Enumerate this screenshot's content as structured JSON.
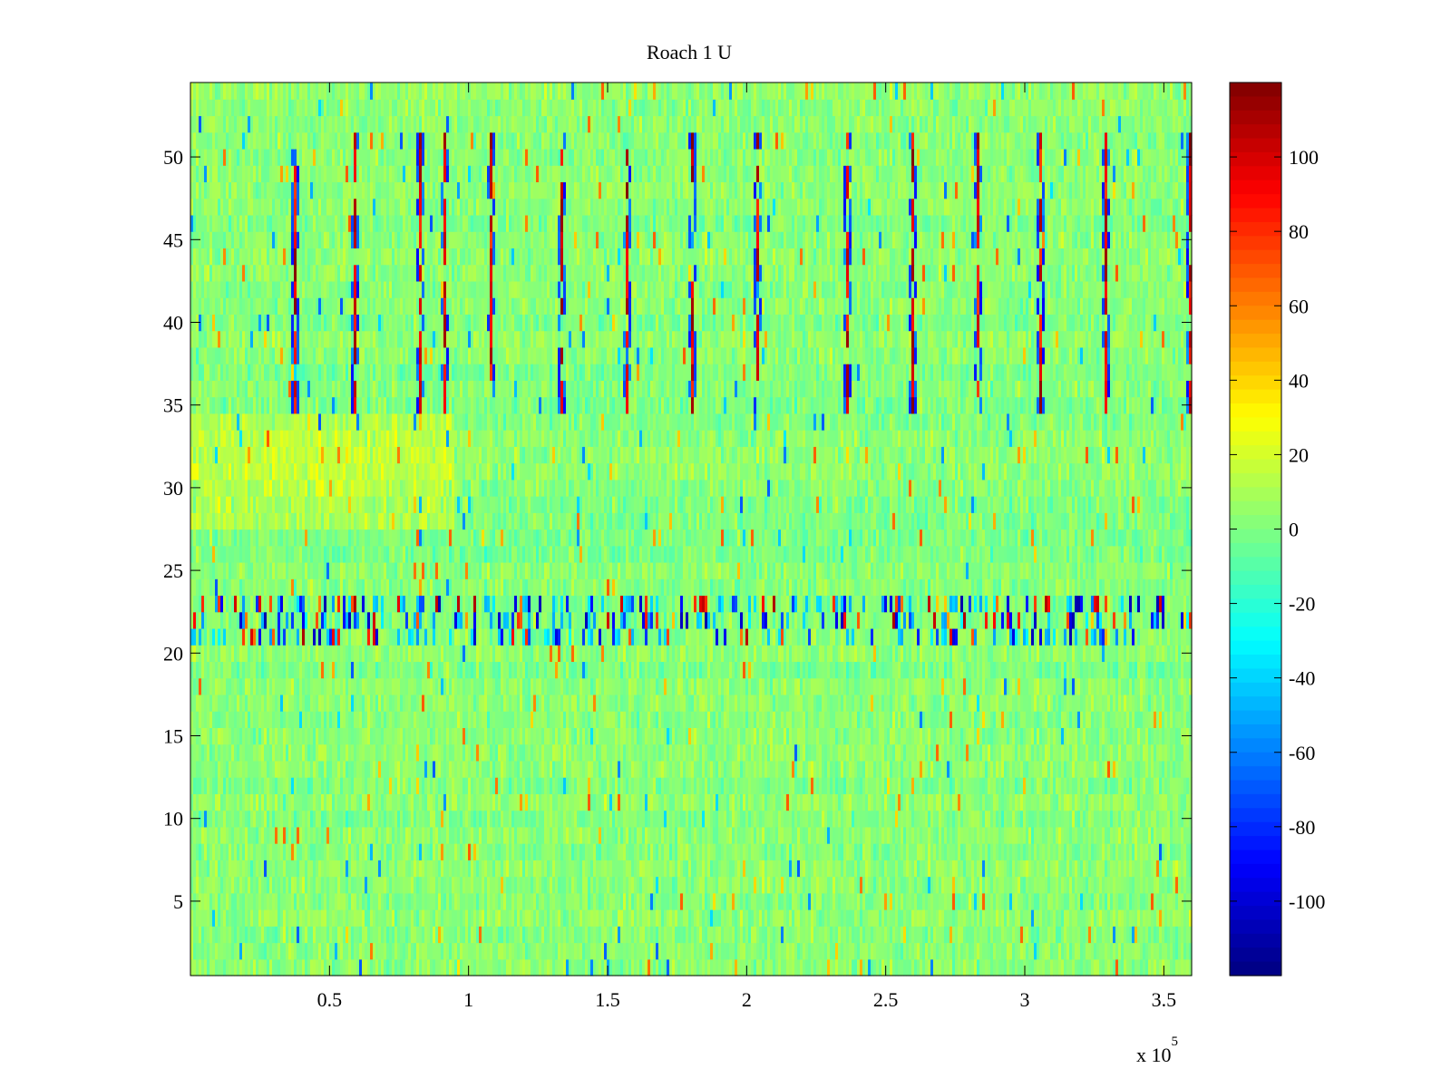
{
  "chart_data": {
    "type": "heatmap",
    "title": "Roach 1 U",
    "xlabel": "",
    "ylabel": "",
    "x_multiplier_label": "x 10",
    "x_multiplier_exponent": "5",
    "xlim": [
      0,
      360000
    ],
    "ylim": [
      0.5,
      54.5
    ],
    "x_ticks": [
      50000,
      100000,
      150000,
      200000,
      250000,
      300000,
      350000
    ],
    "x_tick_labels": [
      "0.5",
      "1",
      "1.5",
      "2",
      "2.5",
      "3",
      "3.5"
    ],
    "y_ticks": [
      5,
      10,
      15,
      20,
      25,
      30,
      35,
      40,
      45,
      50
    ],
    "y_tick_labels": [
      "5",
      "10",
      "15",
      "20",
      "25",
      "30",
      "35",
      "40",
      "45",
      "50"
    ],
    "rows": 54,
    "colorbar": {
      "colormap": "jet",
      "clim": [
        -120,
        120
      ],
      "ticks": [
        100,
        80,
        60,
        40,
        20,
        0,
        -20,
        -40,
        -60,
        -80,
        -100
      ],
      "tick_labels": [
        "100",
        "80",
        "60",
        "40",
        "20",
        "0",
        "-20",
        "-40",
        "-60",
        "-80",
        "-100"
      ]
    },
    "features": {
      "spike_x_positions": [
        37000,
        59000,
        82000,
        91000,
        108000,
        133000,
        157000,
        180000,
        204000,
        236000,
        260000,
        283000,
        306000,
        330000,
        360000
      ],
      "spike_rows": [
        35,
        36,
        37,
        38,
        39,
        40,
        41,
        42,
        43,
        44,
        45,
        46,
        47,
        48,
        49,
        50,
        51
      ],
      "burst_rows": [
        21,
        22,
        23
      ],
      "warm_region": {
        "x_range": [
          0,
          95000
        ],
        "rows": [
          28,
          34
        ]
      }
    }
  }
}
